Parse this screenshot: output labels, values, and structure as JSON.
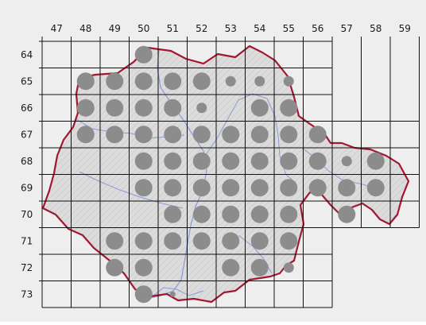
{
  "map": {
    "column_labels": [
      "47",
      "48",
      "49",
      "50",
      "51",
      "52",
      "53",
      "54",
      "55",
      "56",
      "57",
      "58",
      "59"
    ],
    "row_labels": [
      "64",
      "65",
      "66",
      "67",
      "68",
      "69",
      "70",
      "71",
      "72",
      "73"
    ],
    "colors": {
      "panel_background": "#eeeeee",
      "terrain": "#d8d8d8",
      "border": "#a01830",
      "river": "#8a9ad6",
      "grid_line": "#111111",
      "dot": "#8c8c8c"
    },
    "occurrences": [
      {
        "col": "50",
        "row": "64",
        "size": "large"
      },
      {
        "col": "48",
        "row": "65",
        "size": "large"
      },
      {
        "col": "49",
        "row": "65",
        "size": "large"
      },
      {
        "col": "50",
        "row": "65",
        "size": "large"
      },
      {
        "col": "51",
        "row": "65",
        "size": "large"
      },
      {
        "col": "52",
        "row": "65",
        "size": "large"
      },
      {
        "col": "53",
        "row": "65",
        "size": "small"
      },
      {
        "col": "54",
        "row": "65",
        "size": "small"
      },
      {
        "col": "55",
        "row": "65",
        "size": "small"
      },
      {
        "col": "48",
        "row": "66",
        "size": "large"
      },
      {
        "col": "49",
        "row": "66",
        "size": "large"
      },
      {
        "col": "50",
        "row": "66",
        "size": "large"
      },
      {
        "col": "51",
        "row": "66",
        "size": "large"
      },
      {
        "col": "52",
        "row": "66",
        "size": "small"
      },
      {
        "col": "54",
        "row": "66",
        "size": "large"
      },
      {
        "col": "55",
        "row": "66",
        "size": "large"
      },
      {
        "col": "48",
        "row": "67",
        "size": "large"
      },
      {
        "col": "49",
        "row": "67",
        "size": "large"
      },
      {
        "col": "50",
        "row": "67",
        "size": "large"
      },
      {
        "col": "51",
        "row": "67",
        "size": "large"
      },
      {
        "col": "52",
        "row": "67",
        "size": "large"
      },
      {
        "col": "53",
        "row": "67",
        "size": "large"
      },
      {
        "col": "54",
        "row": "67",
        "size": "large"
      },
      {
        "col": "55",
        "row": "67",
        "size": "large"
      },
      {
        "col": "56",
        "row": "67",
        "size": "large"
      },
      {
        "col": "50",
        "row": "68",
        "size": "large"
      },
      {
        "col": "51",
        "row": "68",
        "size": "large"
      },
      {
        "col": "52",
        "row": "68",
        "size": "large"
      },
      {
        "col": "53",
        "row": "68",
        "size": "large"
      },
      {
        "col": "54",
        "row": "68",
        "size": "large"
      },
      {
        "col": "55",
        "row": "68",
        "size": "large"
      },
      {
        "col": "56",
        "row": "68",
        "size": "large"
      },
      {
        "col": "57",
        "row": "68",
        "size": "small"
      },
      {
        "col": "58",
        "row": "68",
        "size": "large"
      },
      {
        "col": "50",
        "row": "69",
        "size": "large"
      },
      {
        "col": "51",
        "row": "69",
        "size": "large"
      },
      {
        "col": "52",
        "row": "69",
        "size": "large"
      },
      {
        "col": "53",
        "row": "69",
        "size": "large"
      },
      {
        "col": "54",
        "row": "69",
        "size": "large"
      },
      {
        "col": "55",
        "row": "69",
        "size": "large"
      },
      {
        "col": "56",
        "row": "69",
        "size": "large"
      },
      {
        "col": "57",
        "row": "69",
        "size": "large"
      },
      {
        "col": "58",
        "row": "69",
        "size": "large"
      },
      {
        "col": "51",
        "row": "70",
        "size": "large"
      },
      {
        "col": "52",
        "row": "70",
        "size": "large"
      },
      {
        "col": "53",
        "row": "70",
        "size": "large"
      },
      {
        "col": "54",
        "row": "70",
        "size": "large"
      },
      {
        "col": "55",
        "row": "70",
        "size": "large"
      },
      {
        "col": "57",
        "row": "70",
        "size": "large"
      },
      {
        "col": "49",
        "row": "71",
        "size": "large"
      },
      {
        "col": "50",
        "row": "71",
        "size": "large"
      },
      {
        "col": "51",
        "row": "71",
        "size": "large"
      },
      {
        "col": "52",
        "row": "71",
        "size": "large"
      },
      {
        "col": "53",
        "row": "71",
        "size": "large"
      },
      {
        "col": "54",
        "row": "71",
        "size": "large"
      },
      {
        "col": "55",
        "row": "71",
        "size": "large"
      },
      {
        "col": "49",
        "row": "72",
        "size": "large"
      },
      {
        "col": "50",
        "row": "72",
        "size": "large"
      },
      {
        "col": "53",
        "row": "72",
        "size": "large"
      },
      {
        "col": "54",
        "row": "72",
        "size": "large"
      },
      {
        "col": "55",
        "row": "72",
        "size": "small"
      },
      {
        "col": "50",
        "row": "73",
        "size": "large"
      },
      {
        "col": "51",
        "row": "73",
        "size": "tiny"
      }
    ]
  }
}
